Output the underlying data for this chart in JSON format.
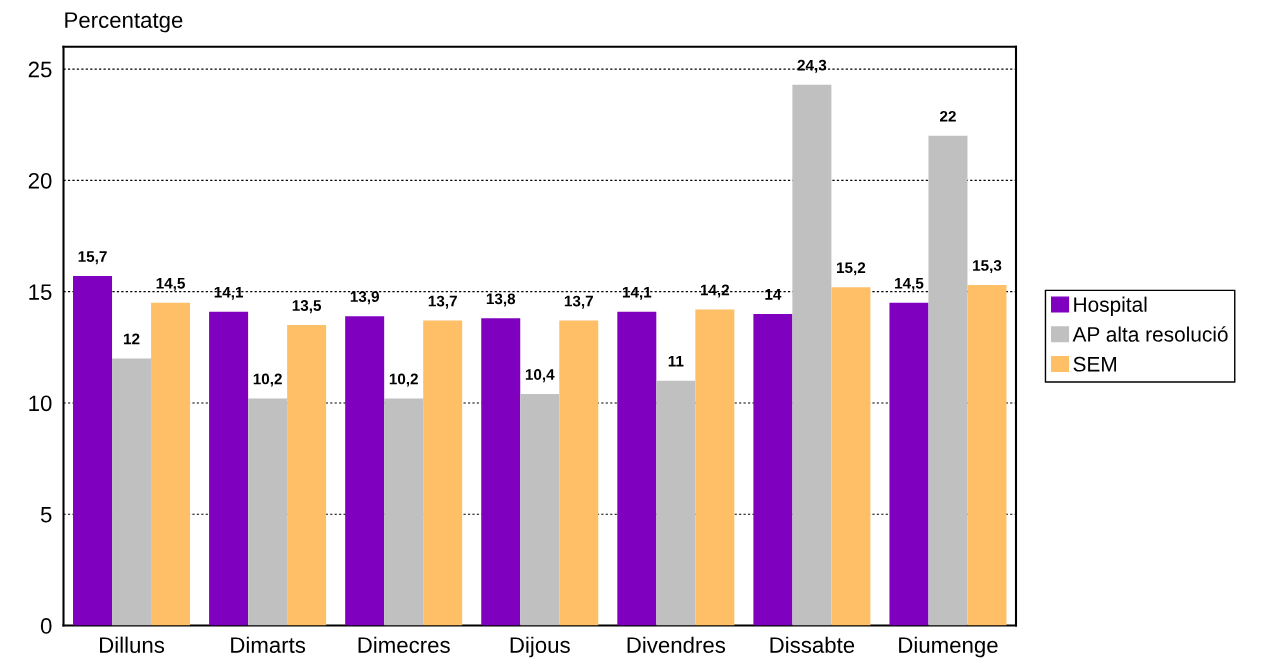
{
  "chart_data": {
    "type": "bar",
    "ylabel": "Percentatge",
    "categories": [
      "Dilluns",
      "Dimarts",
      "Dimecres",
      "Dijous",
      "Divendres",
      "Dissabte",
      "Diumenge"
    ],
    "series": [
      {
        "name": "Hospital",
        "color": "#7f00bf",
        "values": [
          15.7,
          14.1,
          13.9,
          13.8,
          14.1,
          14,
          14.5
        ],
        "value_labels": [
          "15,7",
          "14,1",
          "13,9",
          "13,8",
          "14,1",
          "14",
          "14,5"
        ]
      },
      {
        "name": "AP alta resolució",
        "color": "#c0c0c0",
        "values": [
          12,
          10.2,
          10.2,
          10.4,
          11,
          24.3,
          22
        ],
        "value_labels": [
          "12",
          "10,2",
          "10,2",
          "10,4",
          "11",
          "24,3",
          "22"
        ]
      },
      {
        "name": "SEM",
        "color": "#ffbf66",
        "values": [
          14.5,
          13.5,
          13.7,
          13.7,
          14.2,
          15.2,
          15.3
        ],
        "value_labels": [
          "14,5",
          "13,5",
          "13,7",
          "13,7",
          "14,2",
          "15,2",
          "15,3"
        ]
      }
    ],
    "ylim": [
      0,
      26
    ],
    "yticks": [
      0,
      5,
      10,
      15,
      20,
      25
    ],
    "grid": "y",
    "legend": "right"
  }
}
